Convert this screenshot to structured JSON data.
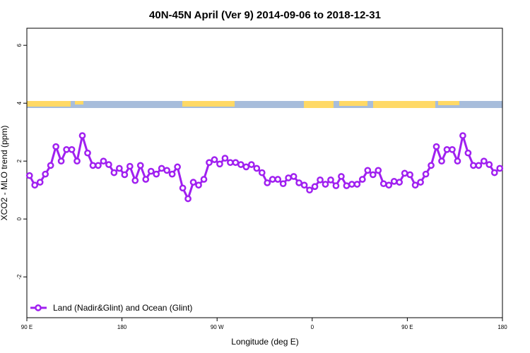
{
  "chart_data": {
    "type": "line",
    "title": "40N-45N April (Ver 9)   2014-09-06 to 2018-12-31",
    "x_label": "Longitude (deg E)",
    "y_label": "XCO2 - MLO trend (ppm)",
    "xlim": [
      90,
      540
    ],
    "ylim": [
      -3.41,
      6.59
    ],
    "xticks": [
      {
        "value": 90,
        "label": "90 E"
      },
      180,
      {
        "value": 270,
        "label": "90 W"
      },
      {
        "value": 360,
        "label": "0"
      },
      {
        "value": 450,
        "label": "90 E"
      },
      {
        "value": 540,
        "label": "180"
      }
    ],
    "yticks": [
      -2,
      0,
      2,
      4,
      6
    ],
    "legend": "bottom-left",
    "x": [
      92.5,
      97.5,
      102.5,
      107.5,
      112.5,
      117.5,
      122.5,
      127.5,
      132.5,
      137.5,
      142.5,
      147.5,
      152.5,
      157.5,
      162.5,
      167.5,
      172.5,
      177.5,
      182.5,
      187.5,
      192.5,
      197.5,
      202.5,
      207.5,
      212.5,
      217.5,
      222.5,
      227.5,
      232.5,
      237.5,
      242.5,
      247.5,
      252.5,
      257.5,
      262.5,
      267.5,
      272.5,
      277.5,
      282.5,
      287.5,
      292.5,
      297.5,
      302.5,
      307.5,
      312.5,
      317.5,
      322.5,
      327.5,
      332.5,
      337.5,
      342.5,
      347.5,
      352.5,
      357.5,
      362.5,
      367.5,
      372.5,
      377.5,
      382.5,
      387.5,
      392.5,
      397.5,
      402.5,
      407.5,
      412.5,
      417.5,
      422.5,
      427.5,
      432.5,
      437.5,
      442.5,
      447.5,
      452.5,
      457.5,
      462.5,
      467.5,
      472.5,
      477.5,
      482.5,
      487.5,
      492.5,
      497.5,
      502.5,
      507.5,
      512.5,
      517.5,
      522.5,
      527.5,
      532.5,
      537.5
    ],
    "series": [
      {
        "name": "Land (Nadir&Glint) and Ocean (Glint)",
        "color": "#a020f0",
        "values": [
          1.5,
          1.17,
          1.27,
          1.55,
          1.85,
          2.5,
          2.0,
          2.4,
          2.4,
          2.0,
          2.88,
          2.28,
          1.85,
          1.85,
          2.0,
          1.88,
          1.6,
          1.75,
          1.53,
          1.82,
          1.33,
          1.85,
          1.37,
          1.65,
          1.55,
          1.75,
          1.68,
          1.55,
          1.8,
          1.07,
          0.7,
          1.27,
          1.17,
          1.37,
          1.95,
          2.05,
          1.9,
          2.1,
          1.95,
          1.95,
          1.88,
          1.8,
          1.88,
          1.75,
          1.6,
          1.25,
          1.37,
          1.37,
          1.22,
          1.42,
          1.47,
          1.25,
          1.17,
          1.0,
          1.12,
          1.35,
          1.2,
          1.35,
          1.15,
          1.47,
          1.15,
          1.2,
          1.2,
          1.37,
          1.68,
          1.53,
          1.68,
          1.22,
          1.17,
          1.3,
          1.27,
          1.58,
          1.53,
          1.17,
          1.27,
          1.55,
          1.85,
          2.5,
          2.0,
          2.4,
          2.4,
          2.0,
          2.88,
          2.28,
          1.85,
          1.85,
          2.0,
          1.88,
          1.6,
          1.75
        ]
      }
    ]
  }
}
